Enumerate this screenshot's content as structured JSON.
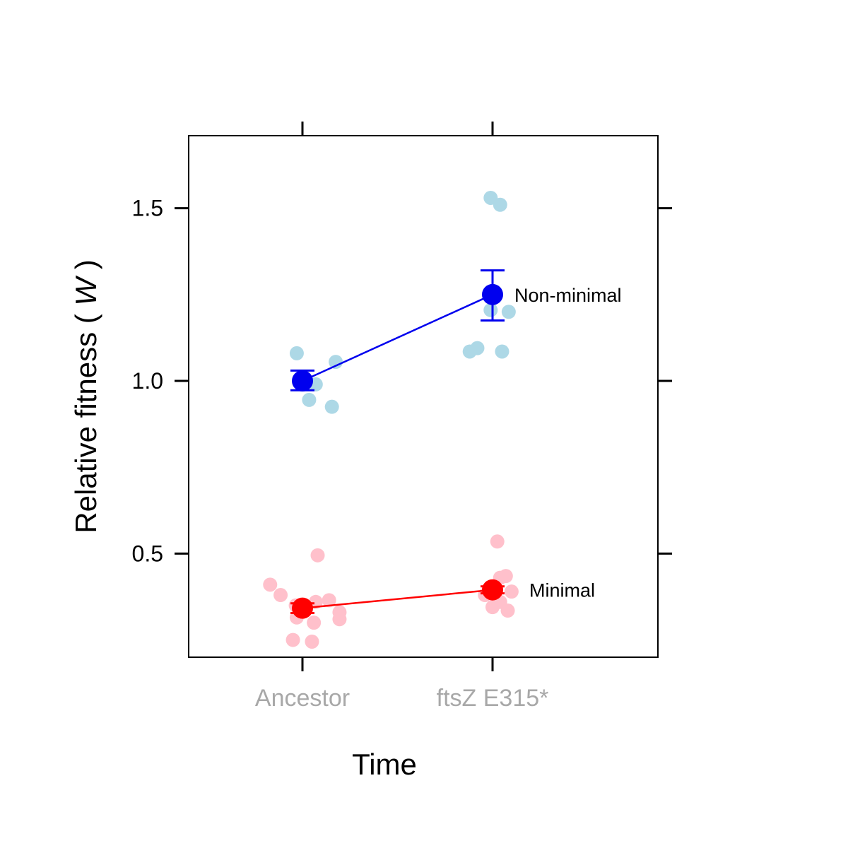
{
  "chart_data": {
    "type": "scatter",
    "xlabel": "Time",
    "ylabel_prefix": "Relative fitness ( ",
    "ylabel_symbol": "W",
    "ylabel_suffix": " )",
    "categories": [
      "Ancestor",
      "ftsZ E315*"
    ],
    "ylim": [
      0.2,
      1.71
    ],
    "yticks": [
      0.5,
      1.0,
      1.5
    ],
    "ytick_labels": [
      "0.5",
      "1.0",
      "1.5"
    ],
    "grid": false,
    "series": [
      {
        "name": "Non-minimal",
        "color": "#0000ee",
        "point_color": "#add8e6",
        "means": [
          1.0,
          1.25
        ],
        "error_low": [
          0.973,
          1.175
        ],
        "error_high": [
          1.03,
          1.32
        ],
        "points": [
          {
            "category": "Ancestor",
            "offset": -0.03,
            "y": 1.08
          },
          {
            "category": "Ancestor",
            "offset": 0.07,
            "y": 0.99
          },
          {
            "category": "Ancestor",
            "offset": 0.175,
            "y": 1.055
          },
          {
            "category": "Ancestor",
            "offset": 0.035,
            "y": 0.945
          },
          {
            "category": "Ancestor",
            "offset": 0.155,
            "y": 0.925
          },
          {
            "category": "ftsZ E315*",
            "offset": -0.01,
            "y": 1.53
          },
          {
            "category": "ftsZ E315*",
            "offset": 0.04,
            "y": 1.51
          },
          {
            "category": "ftsZ E315*",
            "offset": -0.01,
            "y": 1.205
          },
          {
            "category": "ftsZ E315*",
            "offset": 0.085,
            "y": 1.2
          },
          {
            "category": "ftsZ E315*",
            "offset": -0.12,
            "y": 1.085
          },
          {
            "category": "ftsZ E315*",
            "offset": -0.08,
            "y": 1.095
          },
          {
            "category": "ftsZ E315*",
            "offset": 0.05,
            "y": 1.085
          }
        ]
      },
      {
        "name": "Minimal",
        "color": "#ff0000",
        "point_color": "#ffc0cb",
        "means": [
          0.342,
          0.395
        ],
        "error_low": [
          0.328,
          0.385
        ],
        "error_high": [
          0.356,
          0.405
        ],
        "points": [
          {
            "category": "Ancestor",
            "offset": -0.17,
            "y": 0.41
          },
          {
            "category": "Ancestor",
            "offset": -0.115,
            "y": 0.38
          },
          {
            "category": "Ancestor",
            "offset": 0.08,
            "y": 0.495
          },
          {
            "category": "Ancestor",
            "offset": -0.035,
            "y": 0.35
          },
          {
            "category": "Ancestor",
            "offset": 0.07,
            "y": 0.36
          },
          {
            "category": "Ancestor",
            "offset": 0.14,
            "y": 0.365
          },
          {
            "category": "Ancestor",
            "offset": -0.03,
            "y": 0.315
          },
          {
            "category": "Ancestor",
            "offset": 0.06,
            "y": 0.3
          },
          {
            "category": "Ancestor",
            "offset": 0.195,
            "y": 0.33
          },
          {
            "category": "Ancestor",
            "offset": 0.195,
            "y": 0.31
          },
          {
            "category": "Ancestor",
            "offset": -0.05,
            "y": 0.25
          },
          {
            "category": "Ancestor",
            "offset": 0.05,
            "y": 0.245
          },
          {
            "category": "ftsZ E315*",
            "offset": 0.025,
            "y": 0.535
          },
          {
            "category": "ftsZ E315*",
            "offset": 0.04,
            "y": 0.43
          },
          {
            "category": "ftsZ E315*",
            "offset": 0.07,
            "y": 0.435
          },
          {
            "category": "ftsZ E315*",
            "offset": -0.04,
            "y": 0.38
          },
          {
            "category": "ftsZ E315*",
            "offset": 0.1,
            "y": 0.39
          },
          {
            "category": "ftsZ E315*",
            "offset": 0.04,
            "y": 0.36
          },
          {
            "category": "ftsZ E315*",
            "offset": 0.0,
            "y": 0.345
          },
          {
            "category": "ftsZ E315*",
            "offset": 0.08,
            "y": 0.335
          }
        ]
      }
    ]
  }
}
